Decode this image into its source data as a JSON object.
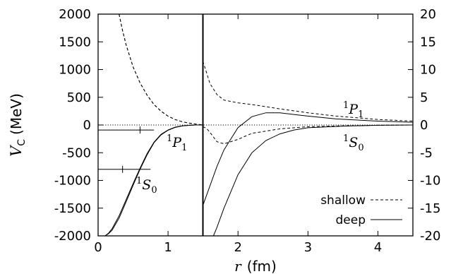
{
  "chart_data": {
    "type": "line",
    "xlabel": {
      "var": "r",
      "unit": "(fm)"
    },
    "ylabel": {
      "var": "V",
      "sub": "C",
      "unit": "(MeV)"
    },
    "x_ticks": [
      "0",
      "1",
      "2",
      "3",
      "4"
    ],
    "y_left_ticks": [
      "-2000",
      "-1500",
      "-1000",
      "-500",
      "0",
      "500",
      "1000",
      "1500",
      "2000"
    ],
    "y_right_ticks": [
      "-20",
      "-15",
      "-10",
      "-5",
      "0",
      "5",
      "10",
      "15",
      "20"
    ],
    "left_panel": {
      "xlim": [
        0,
        1.5
      ],
      "ylim": [
        -2000,
        2000
      ],
      "series": [
        {
          "name": "shallow",
          "label": "1P1",
          "style": "dashed",
          "x": [
            0.3,
            0.35,
            0.4,
            0.5,
            0.6,
            0.7,
            0.8,
            0.9,
            1.0,
            1.1,
            1.2,
            1.3,
            1.4,
            1.5
          ],
          "y": [
            2000,
            1700,
            1450,
            1050,
            760,
            540,
            370,
            250,
            160,
            100,
            60,
            35,
            15,
            0
          ]
        },
        {
          "name": "deep",
          "label": "1P1",
          "style": "solid",
          "x": [
            0.1,
            0.15,
            0.2,
            0.3,
            0.4,
            0.5,
            0.6,
            0.7,
            0.8,
            0.9,
            1.0,
            1.1,
            1.2,
            1.3,
            1.4,
            1.5
          ],
          "y": [
            -2000,
            -1950,
            -1870,
            -1640,
            -1350,
            -1060,
            -780,
            -520,
            -310,
            -170,
            -90,
            -40,
            -15,
            -5,
            0,
            0
          ]
        },
        {
          "name": "shallow",
          "label": "1S0",
          "style": "dashed",
          "x": [
            0.3,
            0.35,
            0.4,
            0.5,
            0.6,
            0.7,
            0.8,
            0.9,
            1.0,
            1.1,
            1.2,
            1.3,
            1.4,
            1.5
          ],
          "y": [
            2000,
            1700,
            1450,
            1050,
            760,
            540,
            370,
            250,
            160,
            100,
            60,
            35,
            15,
            0
          ]
        },
        {
          "name": "deep",
          "label": "1S0",
          "style": "solid",
          "x": [
            0.1,
            0.15,
            0.2,
            0.3,
            0.4,
            0.5,
            0.6,
            0.7,
            0.8,
            0.9,
            1.0,
            1.1,
            1.2,
            1.3,
            1.4,
            1.5
          ],
          "y": [
            -2000,
            -1960,
            -1900,
            -1680,
            -1390,
            -1090,
            -800,
            -540,
            -320,
            -180,
            -95,
            -45,
            -18,
            -6,
            0,
            0
          ]
        }
      ],
      "markers": [
        {
          "label": "1P1",
          "y": -90,
          "x_end": 0.8,
          "tick_x": 0.6
        },
        {
          "label": "1S0",
          "y": -800,
          "x_end": 0.75,
          "tick_x": 0.35
        }
      ]
    },
    "right_panel": {
      "xlim": [
        1.5,
        4.5
      ],
      "ylim": [
        -20,
        20
      ],
      "series": [
        {
          "name": "shallow",
          "label": "1P1",
          "style": "dashed",
          "x": [
            1.5,
            1.55,
            1.6,
            1.7,
            1.8,
            2.0,
            2.2,
            2.4,
            2.6,
            3.0,
            3.4,
            4.0,
            4.5
          ],
          "y": [
            11.5,
            9.5,
            7.5,
            5.5,
            4.5,
            4.0,
            3.7,
            3.3,
            2.9,
            2.2,
            1.6,
            1.0,
            0.7
          ]
        },
        {
          "name": "deep",
          "label": "1P1",
          "style": "solid",
          "x": [
            1.5,
            1.6,
            1.7,
            1.8,
            2.0,
            2.2,
            2.4,
            2.6,
            2.8,
            3.0,
            3.4,
            4.0,
            4.5
          ],
          "y": [
            -14.5,
            -11.0,
            -7.5,
            -4.5,
            -0.5,
            1.5,
            2.2,
            2.2,
            1.9,
            1.6,
            1.1,
            0.7,
            0.5
          ]
        },
        {
          "name": "shallow",
          "label": "1S0",
          "style": "dashed",
          "x": [
            1.5,
            1.55,
            1.6,
            1.7,
            1.8,
            2.0,
            2.2,
            2.6,
            3.0,
            3.5,
            4.0,
            4.5
          ],
          "y": [
            -0.3,
            -0.6,
            -1.3,
            -3.0,
            -3.4,
            -2.6,
            -1.5,
            -0.7,
            -0.3,
            -0.15,
            -0.05,
            0
          ]
        },
        {
          "name": "deep",
          "label": "1S0",
          "style": "solid",
          "x": [
            1.65,
            1.7,
            1.8,
            2.0,
            2.2,
            2.4,
            2.6,
            2.8,
            3.0,
            3.5,
            4.0,
            4.5
          ],
          "y": [
            -20,
            -18.5,
            -15.0,
            -9.0,
            -5.0,
            -2.8,
            -1.6,
            -0.9,
            -0.5,
            -0.2,
            -0.05,
            0
          ]
        }
      ]
    },
    "annotations": [
      {
        "text": "P",
        "sup": "1",
        "sub": "1",
        "panel": "left"
      },
      {
        "text": "S",
        "sup": "1",
        "sub": "0",
        "panel": "left"
      },
      {
        "text": "P",
        "sup": "1",
        "sub": "1",
        "panel": "right"
      },
      {
        "text": "S",
        "sup": "1",
        "sub": "0",
        "panel": "right"
      }
    ],
    "legend": {
      "position": "bottom-right",
      "entries": [
        {
          "label": "shallow",
          "style": "dashed"
        },
        {
          "label": "deep",
          "style": "solid"
        }
      ]
    },
    "zero_line": "dotted"
  }
}
